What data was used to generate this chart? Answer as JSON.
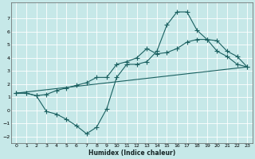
{
  "xlabel": "Humidex (Indice chaleur)",
  "bg_color": "#c6e8e8",
  "line_color": "#1a6060",
  "grid_color": "#ffffff",
  "xlim": [
    -0.5,
    23.5
  ],
  "ylim": [
    -2.5,
    8.2
  ],
  "yticks": [
    -2,
    -1,
    0,
    1,
    2,
    3,
    4,
    5,
    6,
    7
  ],
  "xticks": [
    0,
    1,
    2,
    3,
    4,
    5,
    6,
    7,
    8,
    9,
    10,
    11,
    12,
    13,
    14,
    15,
    16,
    17,
    18,
    19,
    20,
    21,
    22,
    23
  ],
  "series_wiggly_x": [
    0,
    1,
    2,
    3,
    4,
    5,
    6,
    7,
    8,
    9,
    10,
    11,
    12,
    13,
    14,
    15,
    16,
    17,
    18,
    19,
    20,
    21,
    22,
    23
  ],
  "series_wiggly_y": [
    1.3,
    1.3,
    1.1,
    -0.1,
    -0.3,
    -0.7,
    -1.2,
    -1.8,
    -1.3,
    0.1,
    2.5,
    3.5,
    3.5,
    3.7,
    4.5,
    6.5,
    7.5,
    7.5,
    6.1,
    5.4,
    4.5,
    4.1,
    3.5,
    3.3
  ],
  "series_upper_x": [
    0,
    1,
    2,
    3,
    4,
    5,
    6,
    7,
    8,
    9,
    10,
    11,
    12,
    13,
    14,
    15,
    16,
    17,
    18,
    19,
    20,
    21,
    22,
    23
  ],
  "series_upper_y": [
    1.3,
    1.3,
    1.1,
    1.2,
    1.5,
    1.7,
    1.9,
    2.1,
    2.5,
    2.5,
    3.5,
    3.7,
    4.0,
    4.7,
    4.3,
    4.4,
    4.7,
    5.2,
    5.4,
    5.4,
    5.3,
    4.5,
    4.1,
    3.3
  ],
  "series_trend_x": [
    0,
    23
  ],
  "series_trend_y": [
    1.3,
    3.3
  ]
}
